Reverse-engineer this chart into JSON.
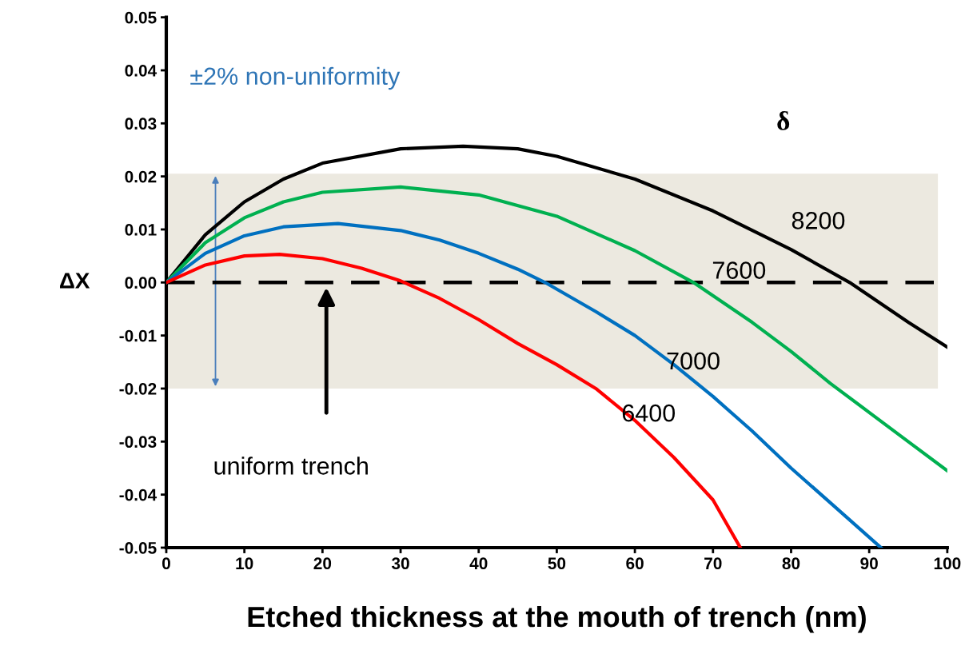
{
  "chart_data": {
    "type": "line",
    "xlabel": "Etched thickness at the mouth of trench (nm)",
    "ylabel": "ΔX",
    "xlim": [
      0,
      100
    ],
    "xticks": [
      0,
      10,
      20,
      30,
      40,
      50,
      60,
      70,
      80,
      90,
      100
    ],
    "ylim": [
      -0.05,
      0.05
    ],
    "yticks": [
      {
        "value": -0.05,
        "label": "-0.05"
      },
      {
        "value": -0.04,
        "label": "-0.04"
      },
      {
        "value": -0.03,
        "label": "-0.03"
      },
      {
        "value": -0.02,
        "label": "-0.02"
      },
      {
        "value": -0.01,
        "label": "-0.01"
      },
      {
        "value": 0,
        "label": "0.00"
      },
      {
        "value": 0.01,
        "label": "0.01"
      },
      {
        "value": 0.02,
        "label": "0.02"
      },
      {
        "value": 0.03,
        "label": "0.03"
      },
      {
        "value": 0.04,
        "label": "0.04"
      },
      {
        "value": 0.05,
        "label": "0.05"
      }
    ],
    "grid": false,
    "legend": false,
    "marker": "none",
    "line_style": "solid",
    "series": [
      {
        "name": "8200",
        "color": "#000000",
        "x": [
          0,
          5,
          10,
          15,
          20,
          30,
          38,
          45,
          50,
          60,
          70,
          80,
          87.5,
          95,
          100
        ],
        "values": [
          0,
          0.009,
          0.0152,
          0.0195,
          0.0225,
          0.0252,
          0.0257,
          0.0252,
          0.0238,
          0.0195,
          0.0135,
          0.0062,
          0,
          -0.0075,
          -0.0122
        ]
      },
      {
        "name": "7600",
        "color": "#00b050",
        "x": [
          0,
          5,
          10,
          15,
          20,
          30,
          40,
          50,
          60,
          67.5,
          75,
          80,
          85,
          90,
          95,
          100
        ],
        "values": [
          0,
          0.0075,
          0.0122,
          0.0152,
          0.017,
          0.018,
          0.0165,
          0.0125,
          0.006,
          0,
          -0.0075,
          -0.013,
          -0.019,
          -0.0245,
          -0.03,
          -0.0355
        ]
      },
      {
        "name": "7000",
        "color": "#0070c0",
        "x": [
          0,
          5,
          10,
          15,
          22,
          30,
          35,
          40,
          45,
          48.5,
          55,
          60,
          65,
          70,
          75,
          80,
          85,
          91.5
        ],
        "values": [
          0,
          0.0055,
          0.0088,
          0.0105,
          0.0111,
          0.0098,
          0.008,
          0.0055,
          0.0025,
          0,
          -0.0055,
          -0.01,
          -0.0155,
          -0.0215,
          -0.028,
          -0.035,
          -0.0415,
          -0.05
        ]
      },
      {
        "name": "6400",
        "color": "#ff0000",
        "x": [
          0,
          5,
          10,
          14.5,
          20,
          25,
          30,
          35,
          40,
          45,
          50,
          55,
          60,
          65,
          70,
          73.5
        ],
        "values": [
          0,
          0.0033,
          0.005,
          0.0053,
          0.0045,
          0.0027,
          0.0003,
          -0.003,
          -0.007,
          -0.0115,
          -0.0155,
          -0.02,
          -0.026,
          -0.033,
          -0.041,
          -0.05
        ]
      }
    ],
    "ref_lines": [
      {
        "axis": "y",
        "value": 0,
        "color": "#000000",
        "line_style": "dashed"
      }
    ],
    "bands": [
      {
        "axis": "y",
        "from": -0.02,
        "to": 0.0205,
        "color": "#ece9e0"
      }
    ],
    "annotations": [
      "±2% non-uniformity",
      "uniform trench",
      "δ"
    ]
  }
}
